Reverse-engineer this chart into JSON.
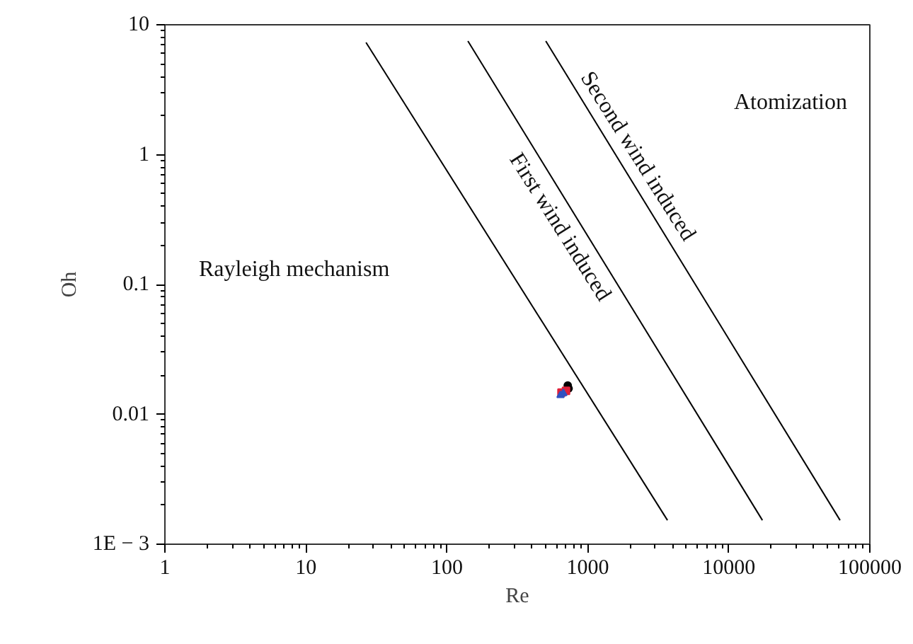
{
  "chart_data": {
    "type": "line",
    "xlabel": "Re",
    "ylabel": "Oh",
    "log": "xy",
    "xlim": [
      1,
      100000
    ],
    "ylim": [
      0.001,
      10
    ],
    "xticks": [
      1,
      10,
      100,
      1000,
      10000,
      100000
    ],
    "yticks": [
      {
        "value": 0.001,
        "label": "1E − 3"
      },
      0.01,
      0.1,
      1,
      10
    ],
    "grid": false,
    "series": [
      {
        "color": "#000000",
        "x": [
          26.7,
          3670
        ],
        "values": [
          7.3,
          0.00153
        ]
      },
      {
        "color": "#000000",
        "x": [
          141,
          17300
        ],
        "values": [
          7.5,
          0.00153
        ]
      },
      {
        "color": "#000000",
        "x": [
          503,
          61500
        ],
        "values": [
          7.5,
          0.00153
        ]
      },
      {
        "type": "scatter",
        "marker": "circle",
        "color": "#000000",
        "x": [
          720,
          730
        ],
        "values": [
          0.0167,
          0.0158
        ]
      },
      {
        "type": "scatter",
        "marker": "square",
        "color": "#e0203a",
        "x": [
          650,
          700
        ],
        "values": [
          0.0147,
          0.0152
        ]
      },
      {
        "type": "scatter",
        "marker": "triangle",
        "color": "#3050c0",
        "x": [
          640,
          670
        ],
        "values": [
          0.014,
          0.0145
        ]
      }
    ],
    "annotations": [
      "Rayleigh mechanism",
      "First wind induced",
      "Second wind induced",
      "Atomization"
    ]
  }
}
